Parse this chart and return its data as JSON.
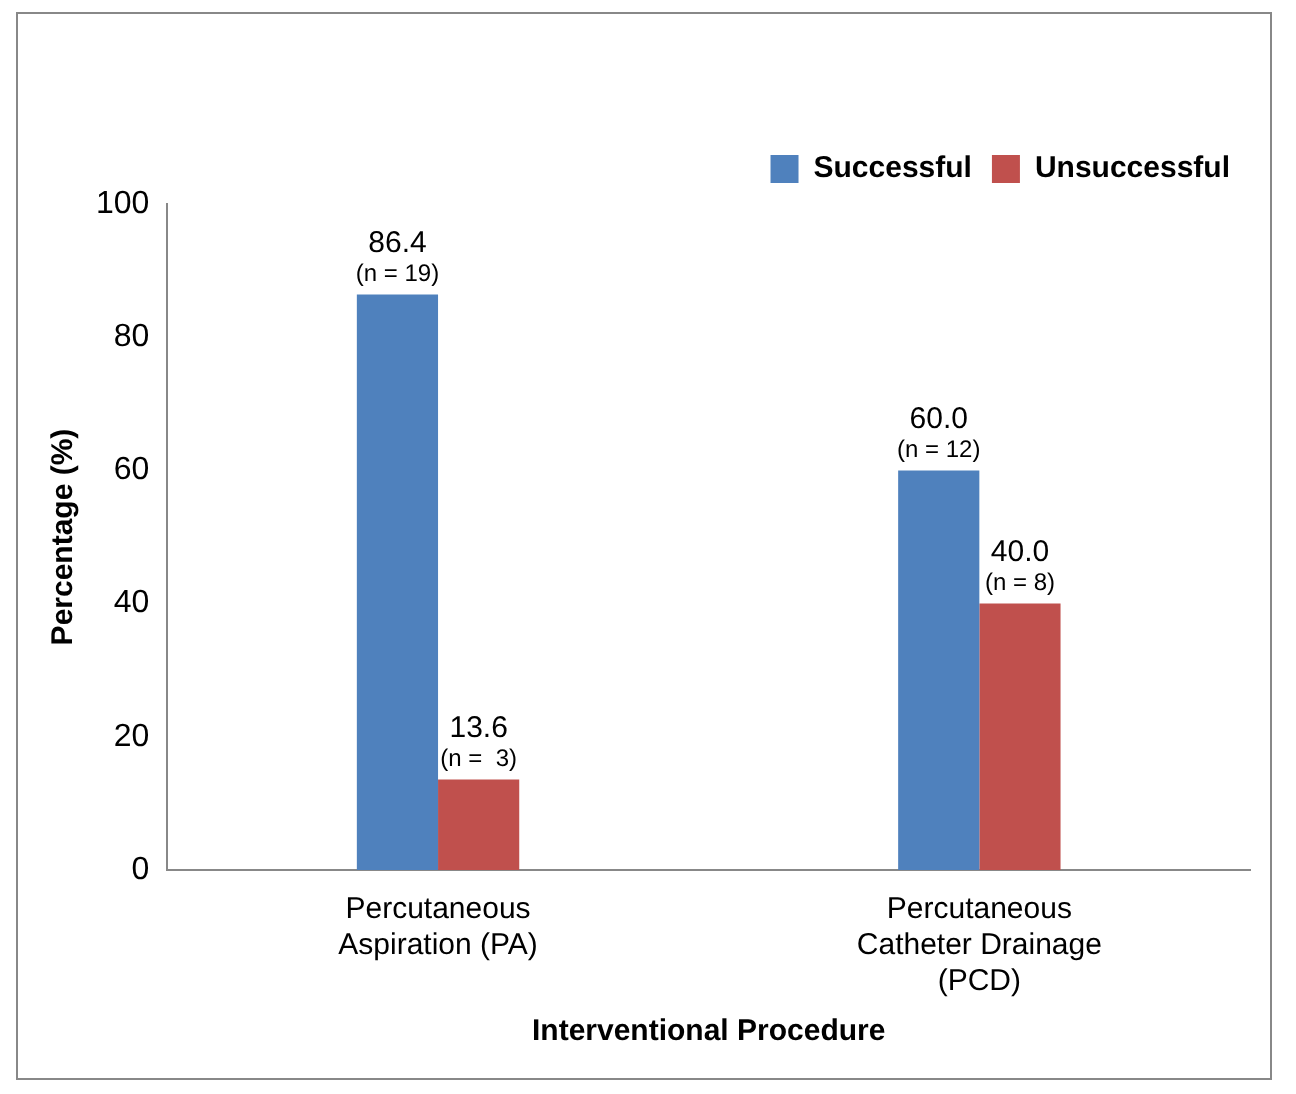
{
  "chart_data": {
    "type": "bar",
    "xlabel": "Interventional Procedure",
    "ylabel": "Percentage (%)",
    "categories": [
      "Percutaneous\nAspiration (PA)",
      "Percutaneous\nCatheter Drainage\n(PCD)"
    ],
    "series": [
      {
        "name": "Successful",
        "color": "#4f81bd",
        "values": [
          86.4,
          60.0
        ],
        "value_labels": [
          "86.4\n(n = 19)",
          "60.0\n(n = 12)"
        ]
      },
      {
        "name": "Unsuccessful",
        "color": "#c0504d",
        "values": [
          13.6,
          40.0
        ],
        "value_labels": [
          "13.6\n(n =  3)",
          "40.0\n(n = 8)"
        ]
      }
    ],
    "ylim": [
      0,
      100
    ],
    "yticks": [
      0,
      20,
      40,
      60,
      80,
      100
    ],
    "grid": false,
    "legend": "top right"
  }
}
